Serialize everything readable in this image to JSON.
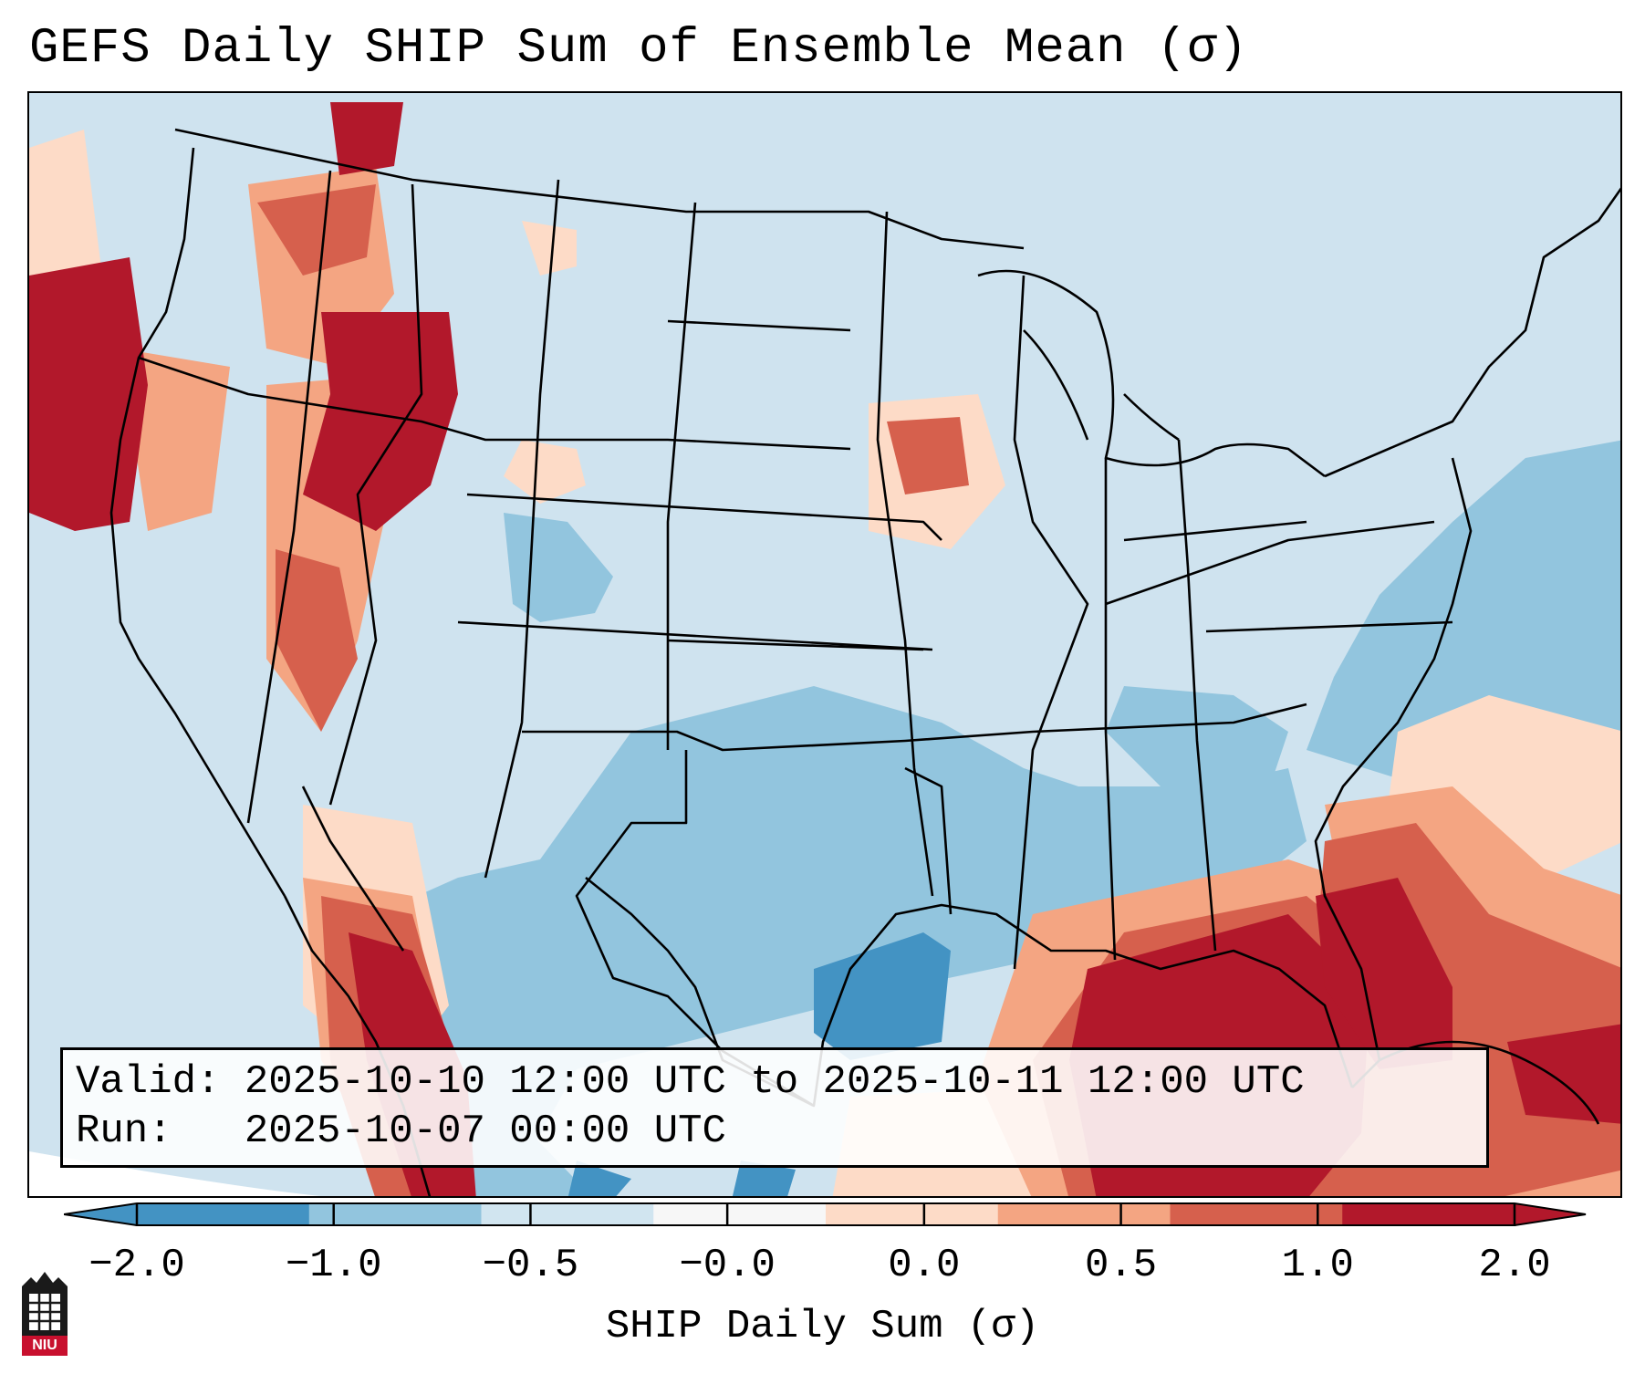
{
  "title": "GEFS Daily SHIP Sum of Ensemble Mean (σ)",
  "info": {
    "valid_label": "Valid:",
    "valid_value": "2025-10-10 12:00 UTC to 2025-10-11 12:00 UTC",
    "run_label": "Run:",
    "run_value": "2025-10-07 00:00 UTC"
  },
  "colorbar": {
    "label": "SHIP Daily Sum (σ)",
    "ticks": [
      "−2.0",
      "−1.0",
      "−0.5",
      "−0.0",
      "0.0",
      "0.5",
      "1.0",
      "2.0"
    ],
    "colors": [
      "#4393c3",
      "#92c5de",
      "#d1e5f0",
      "#f7f7f7",
      "#fddbc7",
      "#f4a582",
      "#d6604d",
      "#b2182b"
    ],
    "extend": "both"
  },
  "logo": {
    "text": "NIU",
    "color": "#c8102e"
  },
  "colors": {
    "land_background": "#d1e5f0",
    "outline": "#000000"
  }
}
